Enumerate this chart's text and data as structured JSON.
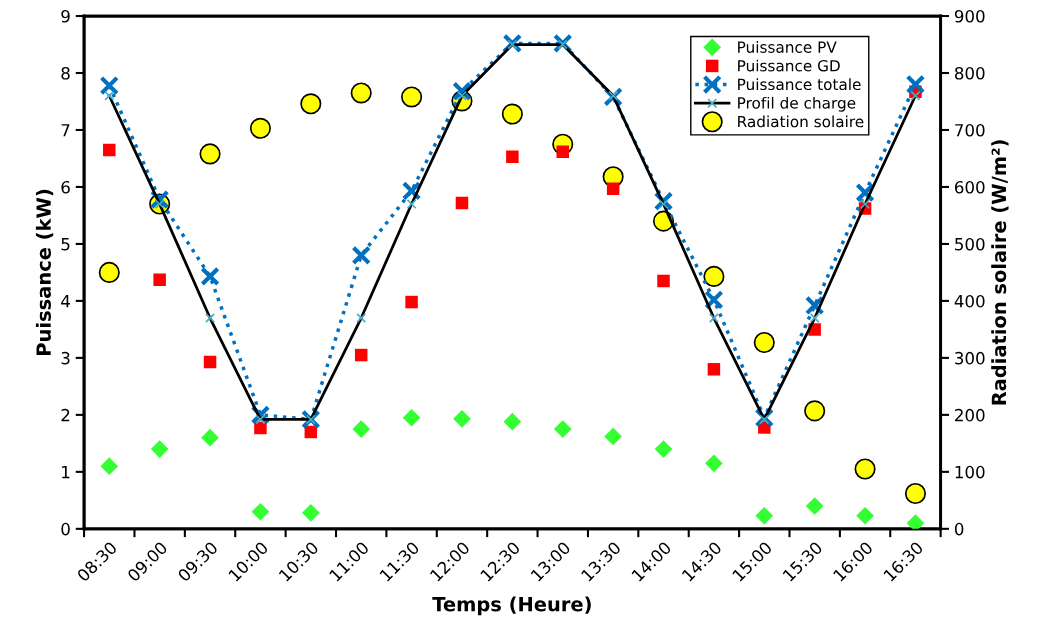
{
  "chart_data": {
    "type": "scatter",
    "xlabel": "Temps (Heure)",
    "ylabel": "Puissance (kW)",
    "y2label": "Radiation solaire (W/m²)",
    "categories": [
      "08:30",
      "09:00",
      "09:30",
      "10:00",
      "10:30",
      "11:00",
      "11:30",
      "12:00",
      "12:30",
      "13:00",
      "13:30",
      "14:00",
      "14:30",
      "15:00",
      "15:30",
      "16:00",
      "16:30"
    ],
    "series": [
      {
        "name": "Puissance PV",
        "marker": "diamond",
        "color": "#33ff33",
        "values": [
          1.1,
          1.4,
          1.6,
          0.3,
          0.28,
          1.75,
          1.95,
          1.93,
          1.88,
          1.75,
          1.62,
          1.4,
          1.15,
          0.23,
          0.4,
          0.23,
          0.1
        ]
      },
      {
        "name": "Puissance GD",
        "marker": "square",
        "color": "#ff0000",
        "values": [
          6.65,
          4.37,
          2.93,
          1.77,
          1.7,
          3.05,
          3.98,
          5.72,
          6.53,
          6.62,
          5.97,
          4.35,
          2.8,
          1.78,
          3.5,
          5.62,
          7.67
        ]
      },
      {
        "name": "Puissance totale",
        "type": "line",
        "marker": "cross",
        "line_style": "dotted",
        "color": "#0070c0",
        "values": [
          7.78,
          5.78,
          4.43,
          2.0,
          1.92,
          4.8,
          5.93,
          7.68,
          8.52,
          8.52,
          7.58,
          5.75,
          4.02,
          1.95,
          3.92,
          5.9,
          7.8
        ]
      },
      {
        "name": "Profil de charge",
        "type": "line",
        "marker": "cross",
        "line_style": "solid",
        "color": "#000000",
        "values": [
          7.6,
          5.7,
          3.7,
          1.92,
          1.92,
          3.7,
          5.7,
          7.6,
          8.5,
          8.5,
          7.6,
          5.7,
          3.7,
          1.92,
          3.7,
          5.7,
          7.6
        ]
      },
      {
        "name": "Radiation solaire",
        "marker": "circle",
        "color": "#ffff00",
        "axis": "y2",
        "values": [
          450,
          570,
          658,
          703,
          746,
          765,
          758,
          751,
          728,
          675,
          618,
          540,
          443,
          327,
          207,
          105,
          62
        ]
      }
    ],
    "ylim": [
      0,
      9
    ],
    "yticks": [
      0,
      1,
      2,
      3,
      4,
      5,
      6,
      7,
      8,
      9
    ],
    "y2lim": [
      0,
      900
    ],
    "y2ticks": [
      0,
      100,
      200,
      300,
      400,
      500,
      600,
      700,
      800,
      900
    ],
    "grid": false,
    "legend": "top right"
  }
}
